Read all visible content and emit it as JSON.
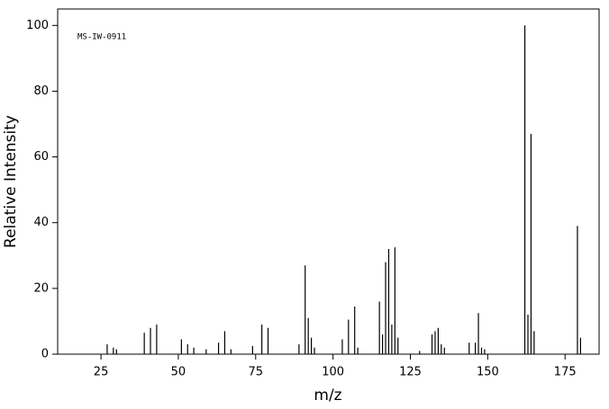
{
  "chart_data": {
    "type": "bar",
    "annotation": "MS-IW-0911",
    "xlabel": "m/z",
    "ylabel": "Relative Intensity",
    "color": "#000000",
    "x": [
      27,
      29,
      30,
      39,
      41,
      43,
      51,
      53,
      55,
      59,
      63,
      65,
      67,
      74,
      77,
      79,
      89,
      91,
      92,
      93,
      94,
      103,
      105,
      107,
      108,
      115,
      116,
      117,
      118,
      119,
      120,
      121,
      128,
      132,
      133,
      134,
      135,
      136,
      144,
      146,
      147,
      148,
      149,
      162,
      163,
      164,
      165,
      179,
      180
    ],
    "values": [
      3,
      2,
      1.5,
      6.5,
      8,
      9,
      4.5,
      3,
      2,
      1.5,
      3.5,
      7,
      1.5,
      2.5,
      9,
      8,
      3,
      27,
      11,
      5,
      2,
      4.5,
      10.5,
      14.5,
      2,
      16,
      6,
      28,
      32,
      9,
      32.5,
      5,
      1,
      6,
      7,
      8,
      3,
      2,
      3.5,
      3.5,
      12.5,
      2,
      1.5,
      100,
      12,
      67,
      7,
      39,
      5
    ],
    "xlim": [
      11,
      186
    ],
    "ylim": [
      0,
      105
    ],
    "xticks": [
      25,
      50,
      75,
      100,
      125,
      150,
      175
    ],
    "yticks": [
      0,
      20,
      40,
      60,
      80,
      100
    ]
  }
}
